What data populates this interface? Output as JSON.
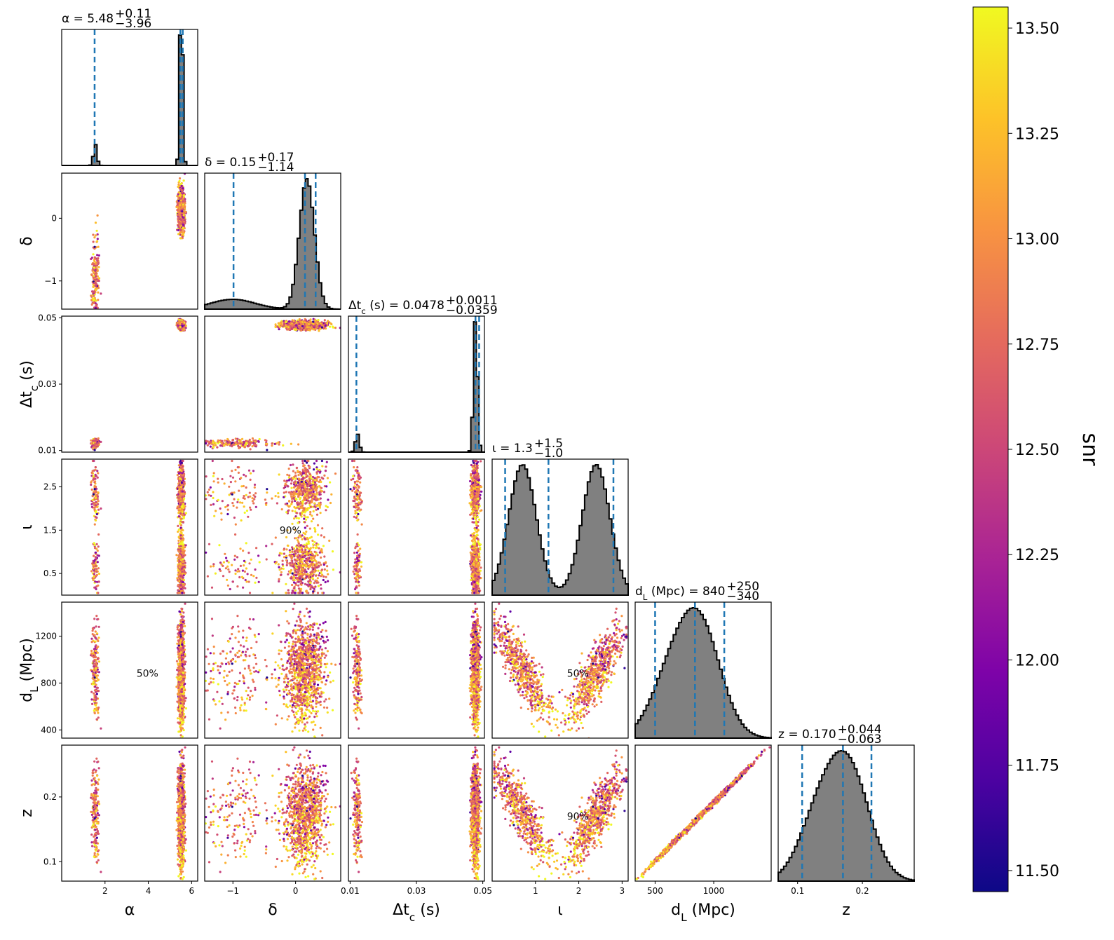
{
  "chart_data": {
    "type": "corner",
    "parameters": [
      {
        "key": "alpha",
        "label": "α",
        "range": [
          0.0,
          6.28
        ],
        "ticks": [
          "2",
          "4",
          "6"
        ],
        "tick_values": [
          2,
          4,
          6
        ],
        "title": "α = 5.48",
        "sup": "+0.11",
        "sub": "−3.96",
        "quantiles": [
          1.52,
          5.48,
          5.59
        ],
        "modes": [
          {
            "mu": 1.55,
            "sd": 0.08,
            "w": 0.12
          },
          {
            "mu": 5.52,
            "sd": 0.07,
            "w": 0.88
          }
        ]
      },
      {
        "key": "delta",
        "label": "δ",
        "range": [
          -1.45,
          0.72
        ],
        "ticks": [
          "−1",
          "0"
        ],
        "tick_values": [
          -1,
          0
        ],
        "title": "δ = 0.15",
        "sup": "+0.17",
        "sub": "−1.14",
        "quantiles": [
          -0.99,
          0.15,
          0.32
        ],
        "modes": [
          {
            "mu": -1.0,
            "sd": 0.35,
            "w": 0.18
          },
          {
            "mu": 0.18,
            "sd": 0.12,
            "w": 0.82
          }
        ]
      },
      {
        "key": "dtc",
        "label": "Δt_c (s)",
        "range": [
          0.0095,
          0.0505
        ],
        "ticks": [
          "0.01",
          "0.03",
          "0.05"
        ],
        "tick_values": [
          0.01,
          0.03,
          0.05
        ],
        "title": "Δt_c (s) = 0.0478",
        "sup": "+0.0011",
        "sub": "−0.0359",
        "quantiles": [
          0.0119,
          0.0478,
          0.0489
        ],
        "modes": [
          {
            "mu": 0.0122,
            "sd": 0.0006,
            "w": 0.12
          },
          {
            "mu": 0.0478,
            "sd": 0.0006,
            "w": 0.88
          }
        ]
      },
      {
        "key": "iota",
        "label": "ι",
        "range": [
          0.0,
          3.14
        ],
        "ticks": [
          "0.5",
          "1.5",
          "2.5"
        ],
        "tick_values": [
          0.5,
          1.5,
          2.5
        ],
        "xticks": [
          "1",
          "2",
          "3"
        ],
        "xtick_values": [
          1,
          2,
          3
        ],
        "title": "ι = 1.3",
        "sup": "+1.5",
        "sub": "−1.0",
        "quantiles": [
          0.3,
          1.3,
          2.8
        ],
        "modes": [
          {
            "mu": 0.7,
            "sd": 0.32,
            "w": 0.5
          },
          {
            "mu": 2.4,
            "sd": 0.32,
            "w": 0.5
          }
        ]
      },
      {
        "key": "dL",
        "label": "d_L (Mpc)",
        "range": [
          330,
          1490
        ],
        "ticks": [
          "400",
          "800",
          "1200"
        ],
        "tick_values": [
          400,
          800,
          1200
        ],
        "xticks": [
          "500",
          "1000"
        ],
        "xtick_values": [
          500,
          1000
        ],
        "title": "d_L (Mpc) = 840",
        "sup": "+250",
        "sub": "−340",
        "quantiles": [
          500,
          840,
          1090
        ],
        "modes": [
          {
            "mu": 880,
            "sd": 180,
            "w": 0.7
          },
          {
            "mu": 620,
            "sd": 170,
            "w": 0.3
          }
        ]
      },
      {
        "key": "z",
        "label": "z",
        "range": [
          0.07,
          0.28
        ],
        "ticks": [
          "0.1",
          "0.2"
        ],
        "tick_values": [
          0.1,
          0.2
        ],
        "title": "z = 0.170",
        "sup": "+0.044",
        "sub": "−0.063",
        "quantiles": [
          0.107,
          0.17,
          0.214
        ],
        "modes": [
          {
            "mu": 0.178,
            "sd": 0.033,
            "w": 0.7
          },
          {
            "mu": 0.13,
            "sd": 0.03,
            "w": 0.3
          }
        ]
      }
    ],
    "contour_levels": [
      "50%",
      "90%"
    ],
    "colorbar": {
      "label": "snr",
      "colormap": "plasma",
      "range": [
        11.45,
        13.55
      ],
      "ticks": [
        "11.50",
        "11.75",
        "12.00",
        "12.25",
        "12.50",
        "12.75",
        "13.00",
        "13.25",
        "13.50"
      ],
      "tick_values": [
        11.5,
        11.75,
        12.0,
        12.25,
        12.5,
        12.75,
        13.0,
        13.25,
        13.5
      ]
    },
    "colors": {
      "histogram_fill": "#808080",
      "quantile_line": "#1f77b4",
      "contour": "#000000"
    }
  }
}
